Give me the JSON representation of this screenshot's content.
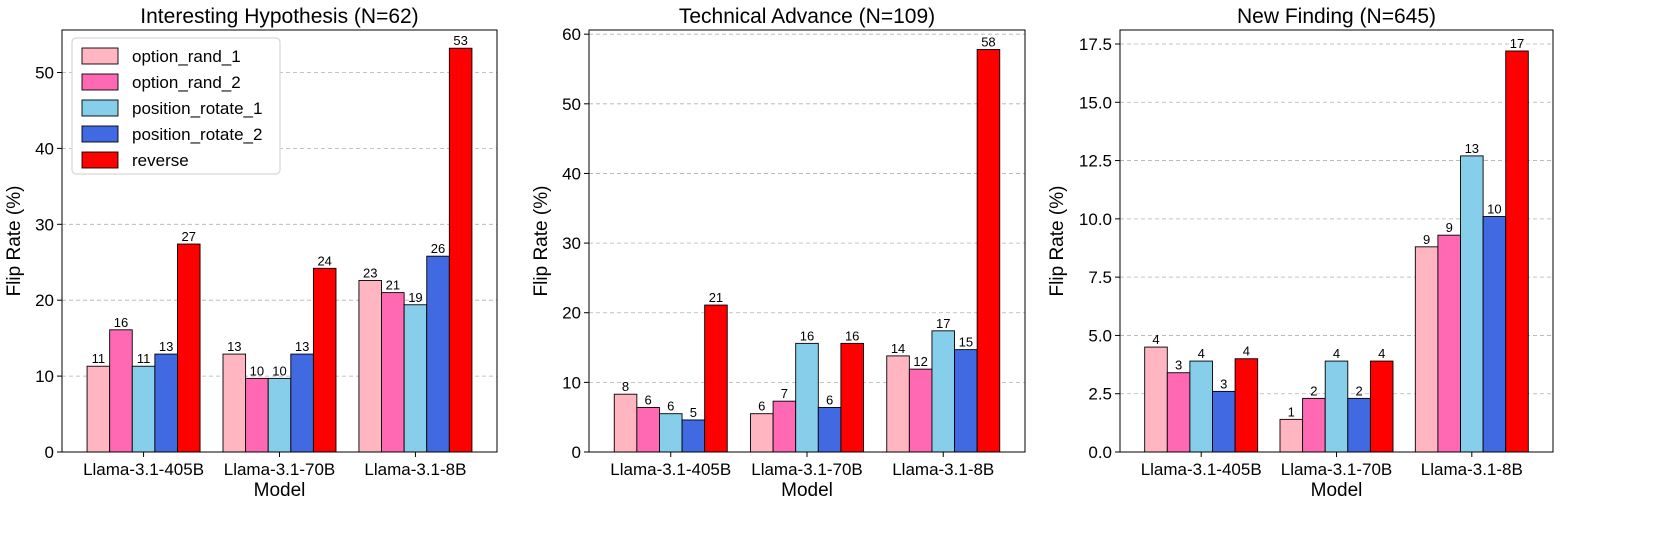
{
  "chart_data": [
    {
      "type": "bar",
      "title": "Interesting Hypothesis (N=62)",
      "xlabel": "Model",
      "ylabel": "Flip Rate (%)",
      "ylim": [
        0,
        55.6
      ],
      "yticks": [
        0,
        10,
        20,
        30,
        40,
        50
      ],
      "ytick_labels": [
        "0",
        "10",
        "20",
        "30",
        "40",
        "50"
      ],
      "grid": true,
      "legend": "top-left",
      "categories": [
        "Llama-3.1-405B",
        "Llama-3.1-70B",
        "Llama-3.1-8B"
      ],
      "series": [
        {
          "name": "option_rand_1",
          "values": [
            11.3,
            12.9,
            22.6
          ],
          "labels": [
            "11",
            "13",
            "23"
          ]
        },
        {
          "name": "option_rand_2",
          "values": [
            16.1,
            9.7,
            21.0
          ],
          "labels": [
            "16",
            "10",
            "21"
          ]
        },
        {
          "name": "position_rotate_1",
          "values": [
            11.3,
            9.7,
            19.4
          ],
          "labels": [
            "11",
            "10",
            "19"
          ]
        },
        {
          "name": "position_rotate_2",
          "values": [
            12.9,
            12.9,
            25.8
          ],
          "labels": [
            "13",
            "13",
            "26"
          ]
        },
        {
          "name": "reverse",
          "values": [
            27.4,
            24.2,
            53.2
          ],
          "labels": [
            "27",
            "24",
            "53"
          ]
        }
      ]
    },
    {
      "type": "bar",
      "title": "Technical Advance (N=109)",
      "xlabel": "Model",
      "ylabel": "Flip Rate (%)",
      "ylim": [
        0,
        60.6
      ],
      "yticks": [
        0,
        10,
        20,
        30,
        40,
        50,
        60
      ],
      "ytick_labels": [
        "0",
        "10",
        "20",
        "30",
        "40",
        "50",
        "60"
      ],
      "grid": true,
      "legend": "none",
      "categories": [
        "Llama-3.1-405B",
        "Llama-3.1-70B",
        "Llama-3.1-8B"
      ],
      "series": [
        {
          "name": "option_rand_1",
          "values": [
            8.3,
            5.5,
            13.8
          ],
          "labels": [
            "8",
            "6",
            "14"
          ]
        },
        {
          "name": "option_rand_2",
          "values": [
            6.4,
            7.3,
            11.9
          ],
          "labels": [
            "6",
            "7",
            "12"
          ]
        },
        {
          "name": "position_rotate_1",
          "values": [
            5.5,
            15.6,
            17.4
          ],
          "labels": [
            "6",
            "16",
            "17"
          ]
        },
        {
          "name": "position_rotate_2",
          "values": [
            4.6,
            6.4,
            14.7
          ],
          "labels": [
            "5",
            "6",
            "15"
          ]
        },
        {
          "name": "reverse",
          "values": [
            21.1,
            15.6,
            57.8
          ],
          "labels": [
            "21",
            "16",
            "58"
          ]
        }
      ]
    },
    {
      "type": "bar",
      "title": "New Finding (N=645)",
      "xlabel": "Model",
      "ylabel": "Flip Rate (%)",
      "ylim": [
        0,
        18.1
      ],
      "yticks": [
        0,
        2.5,
        5,
        7.5,
        10,
        12.5,
        15,
        17.5
      ],
      "ytick_labels": [
        "0.0",
        "2.5",
        "5.0",
        "7.5",
        "10.0",
        "12.5",
        "15.0",
        "17.5"
      ],
      "grid": true,
      "legend": "none",
      "categories": [
        "Llama-3.1-405B",
        "Llama-3.1-70B",
        "Llama-3.1-8B"
      ],
      "series": [
        {
          "name": "option_rand_1",
          "values": [
            4.5,
            1.4,
            8.8
          ],
          "labels": [
            "4",
            "1",
            "9"
          ]
        },
        {
          "name": "option_rand_2",
          "values": [
            3.4,
            2.3,
            9.3
          ],
          "labels": [
            "3",
            "2",
            "9"
          ]
        },
        {
          "name": "position_rotate_1",
          "values": [
            3.9,
            3.9,
            12.7
          ],
          "labels": [
            "4",
            "4",
            "13"
          ]
        },
        {
          "name": "position_rotate_2",
          "values": [
            2.6,
            2.3,
            10.1
          ],
          "labels": [
            "3",
            "2",
            "10"
          ]
        },
        {
          "name": "reverse",
          "values": [
            4.0,
            3.9,
            17.2
          ],
          "labels": [
            "4",
            "4",
            "17"
          ]
        }
      ]
    }
  ],
  "colors": {
    "option_rand_1": "#ffb6c1",
    "option_rand_2": "#ff69b4",
    "position_rotate_1": "#87ceeb",
    "position_rotate_2": "#4169e1",
    "reverse": "#ff0000"
  }
}
